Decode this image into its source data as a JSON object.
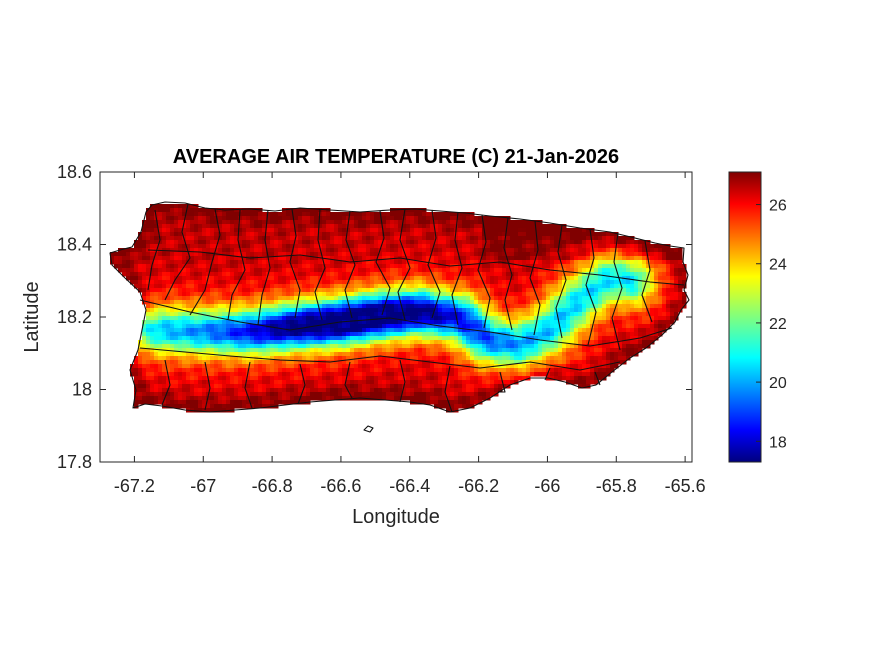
{
  "chart_data": {
    "type": "heatmap",
    "title": "AVERAGE AIR TEMPERATURE (C) 21-Jan-2026",
    "xlabel": "Longitude",
    "ylabel": "Latitude",
    "xlim": [
      -67.3,
      -65.58
    ],
    "ylim": [
      17.8,
      18.6
    ],
    "xticks": [
      -67.2,
      -67,
      -66.8,
      -66.6,
      -66.4,
      -66.2,
      -66,
      -65.8,
      -65.6
    ],
    "yticks": [
      17.8,
      18,
      18.2,
      18.4,
      18.6
    ],
    "xtick_labels": [
      "-67.2",
      "-67",
      "-66.8",
      "-66.6",
      "-66.4",
      "-66.2",
      "-66",
      "-65.8",
      "-65.6"
    ],
    "ytick_labels": [
      "17.8",
      "18",
      "18.2",
      "18.4",
      "18.6"
    ],
    "colorbar": {
      "colormap": "jet",
      "range": [
        17.3,
        27.1
      ],
      "ticks": [
        18,
        20,
        22,
        24,
        26
      ],
      "tick_labels": [
        "18",
        "20",
        "22",
        "24",
        "26"
      ]
    },
    "field_summary": {
      "coast_temperature": 26.5,
      "interior_ridge_min": 17.3,
      "northeast_coast_max": 27.1
    },
    "grid": false
  }
}
